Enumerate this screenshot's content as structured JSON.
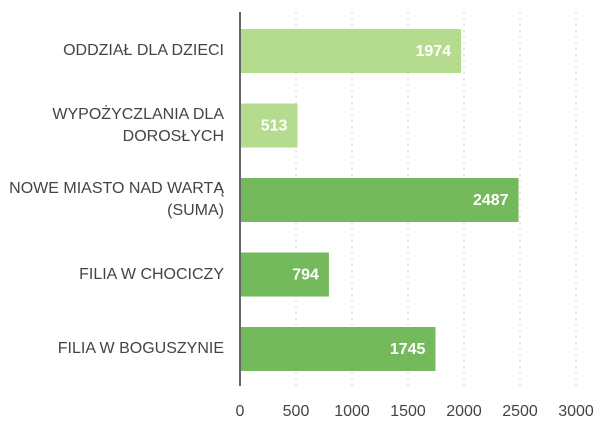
{
  "chart_data": {
    "type": "barh",
    "categories": [
      "ODDZIAŁ DLA DZIECI",
      "WYPOŻYCZLANIA DLA DOROSŁYCH",
      "NOWE MIASTO NAD WARTĄ (SUMA)",
      "FILIA W CHOCICZY",
      "FILIA W BOGUSZYNIE"
    ],
    "values": [
      1974,
      513,
      2487,
      794,
      1745
    ],
    "colors": [
      "#b5dc8e",
      "#b5dc8e",
      "#74b95b",
      "#74b95b",
      "#74b95b"
    ],
    "xlim": [
      0,
      3000
    ],
    "xticks": [
      0,
      500,
      1000,
      1500,
      2000,
      2500,
      3000
    ],
    "grid": true
  }
}
